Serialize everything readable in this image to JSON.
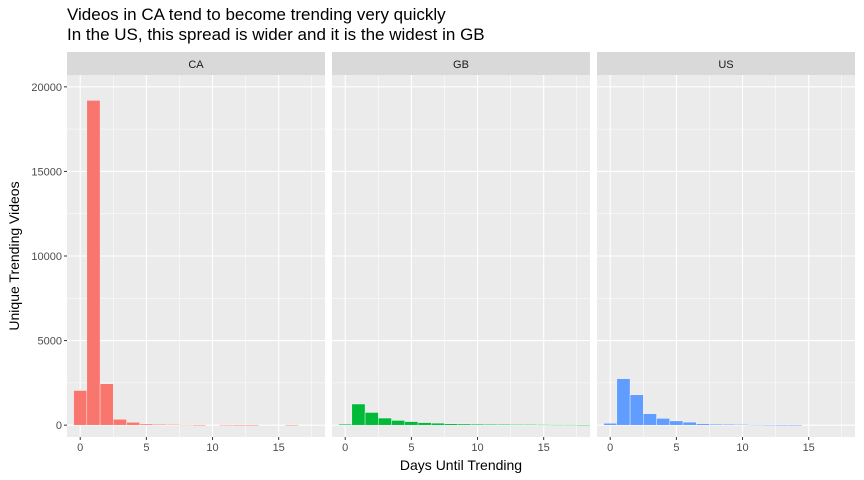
{
  "chart_data": {
    "type": "bar",
    "title": "Videos in CA tend to become trending very quickly",
    "subtitle": "In the US, this spread is wider and it is the widest in GB",
    "xlabel": "Days Until Trending",
    "ylabel": "Unique Trending Videos",
    "xlim": [
      -1,
      18.5
    ],
    "ylim": [
      -700,
      20700
    ],
    "x_ticks": [
      0,
      5,
      10,
      15
    ],
    "y_ticks": [
      0,
      5000,
      10000,
      15000,
      20000
    ],
    "grid": true,
    "legend": "none",
    "panels": [
      {
        "name": "CA",
        "color": "#F8766D",
        "x": [
          0,
          1,
          2,
          3,
          4,
          5,
          6,
          7,
          8,
          9,
          10,
          11,
          12,
          13,
          14,
          15,
          16,
          17,
          18
        ],
        "values": [
          2050,
          19200,
          2450,
          350,
          170,
          70,
          50,
          40,
          30,
          20,
          0,
          25,
          20,
          20,
          0,
          0,
          15,
          0,
          0
        ]
      },
      {
        "name": "GB",
        "color": "#00BA38",
        "x": [
          0,
          1,
          2,
          3,
          4,
          5,
          6,
          7,
          8,
          9,
          10,
          11,
          12,
          13,
          14,
          15,
          16,
          17,
          18
        ],
        "values": [
          60,
          1250,
          750,
          420,
          280,
          210,
          150,
          120,
          80,
          70,
          60,
          50,
          45,
          40,
          40,
          35,
          30,
          30,
          25
        ]
      },
      {
        "name": "US",
        "color": "#619CFF",
        "x": [
          0,
          1,
          2,
          3,
          4,
          5,
          6,
          7,
          8,
          9,
          10,
          11,
          12,
          13,
          14,
          15,
          16,
          17,
          18
        ],
        "values": [
          110,
          2750,
          1800,
          680,
          400,
          250,
          180,
          90,
          60,
          50,
          40,
          30,
          25,
          20,
          20,
          0,
          0,
          0,
          0
        ]
      }
    ]
  }
}
